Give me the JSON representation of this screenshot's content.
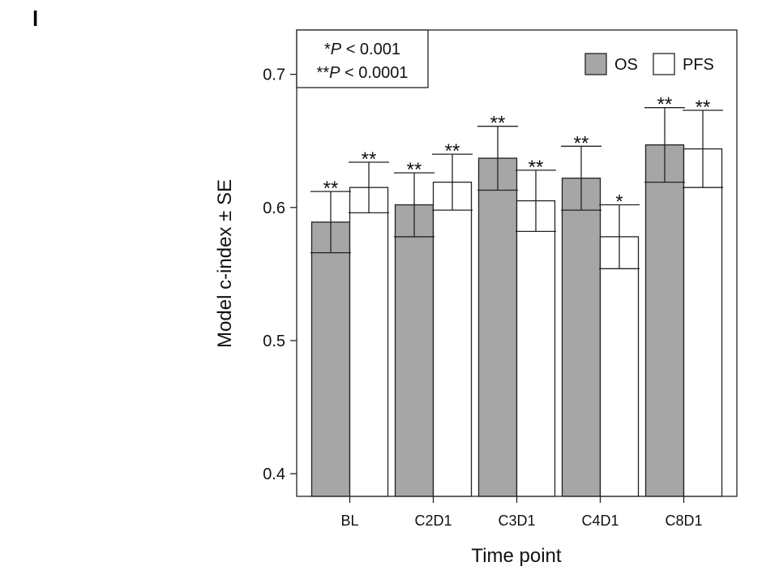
{
  "panel_label": "l",
  "chart_data": {
    "type": "bar",
    "title": "",
    "xlabel": "Time point",
    "ylabel": "Model c-index ± SE",
    "categories": [
      "BL",
      "C2D1",
      "C3D1",
      "C4D1",
      "C8D1"
    ],
    "ylim": [
      0.383,
      0.7333
    ],
    "yticks": [
      0.4,
      0.5,
      0.6,
      0.7
    ],
    "ytick_labels": [
      "0.4",
      "0.5",
      "0.6",
      "0.7"
    ],
    "grid": false,
    "legend_position": "top-right",
    "series": [
      {
        "name": "OS",
        "color": "#a6a6a6",
        "values": [
          0.589,
          0.602,
          0.637,
          0.622,
          0.647
        ],
        "se": [
          0.023,
          0.024,
          0.024,
          0.024,
          0.028
        ],
        "sig": [
          "**",
          "**",
          "**",
          "**",
          "**"
        ]
      },
      {
        "name": "PFS",
        "color": "#ffffff",
        "values": [
          0.615,
          0.619,
          0.605,
          0.578,
          0.644
        ],
        "se": [
          0.019,
          0.021,
          0.023,
          0.024,
          0.029
        ],
        "sig": [
          "**",
          "**",
          "**",
          "*",
          "**"
        ]
      }
    ],
    "annotation": {
      "lines": [
        {
          "stars": "*",
          "p": "P",
          "rest": " < 0.001"
        },
        {
          "stars": "**",
          "p": "P",
          "rest": " < 0.0001"
        }
      ]
    }
  }
}
